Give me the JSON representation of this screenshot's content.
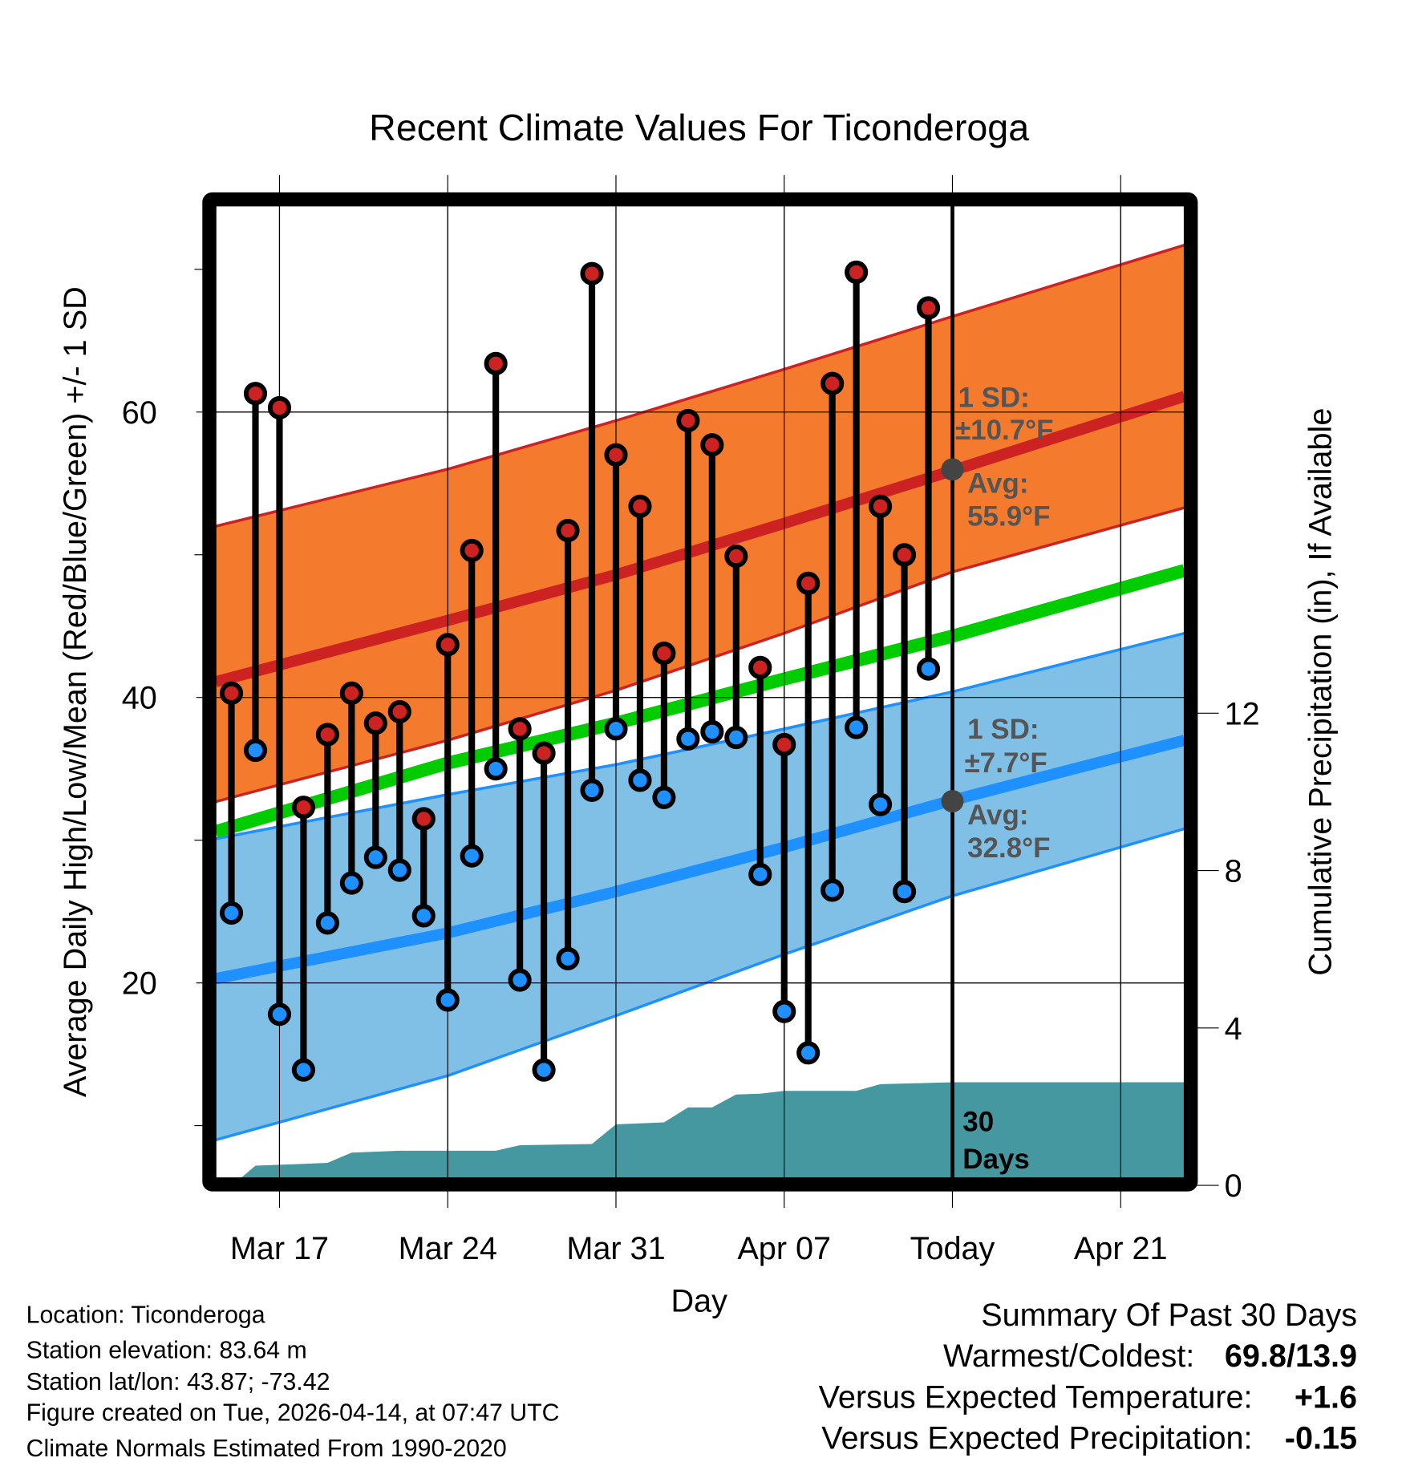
{
  "chart_data": {
    "type": "line",
    "title": "Recent Climate Values For Ticonderoga",
    "xlabel": "Day",
    "ylabel": "Average Daily High/Low/Mean (Red/Blue/Green) +/- 1 SD",
    "ylabel_right": "Cumulative Precipitation (in), If Available",
    "ylim": [
      6.3,
      74.4
    ],
    "yticks": [
      "20",
      "40",
      "60"
    ],
    "ylim_right": [
      0,
      24.7
    ],
    "yticks_right": [
      "0",
      "4",
      "8",
      "12"
    ],
    "x_day_index_note": "day 0 = Mar 15",
    "xlim": [
      -0.65,
      39.65
    ],
    "xticks": [
      {
        "day": 2,
        "label": "Mar 17"
      },
      {
        "day": 9,
        "label": "Mar 24"
      },
      {
        "day": 16,
        "label": "Mar 31"
      },
      {
        "day": 23,
        "label": "Apr 07"
      },
      {
        "day": 30,
        "label": "Today"
      },
      {
        "day": 37,
        "label": "Apr 21"
      }
    ],
    "grid": true,
    "observed": {
      "dates": [
        "Mar 15",
        "Mar 16",
        "Mar 17",
        "Mar 18",
        "Mar 19",
        "Mar 20",
        "Mar 21",
        "Mar 22",
        "Mar 23",
        "Mar 24",
        "Mar 25",
        "Mar 26",
        "Mar 27",
        "Mar 28",
        "Mar 29",
        "Mar 30",
        "Mar 31",
        "Apr 01",
        "Apr 02",
        "Apr 03",
        "Apr 04",
        "Apr 05",
        "Apr 06",
        "Apr 07",
        "Apr 08",
        "Apr 09",
        "Apr 10",
        "Apr 11",
        "Apr 12",
        "Apr 13"
      ],
      "high": [
        40.3,
        61.3,
        60.3,
        32.3,
        37.4,
        40.3,
        38.2,
        39.0,
        31.5,
        43.7,
        50.3,
        63.4,
        37.8,
        36.1,
        51.7,
        69.7,
        57.0,
        53.4,
        43.1,
        59.4,
        57.7,
        49.9,
        42.1,
        36.7,
        48.0,
        62.0,
        69.8,
        53.4,
        50.0,
        67.3
      ],
      "low": [
        24.9,
        36.3,
        17.8,
        13.9,
        24.2,
        27.0,
        28.8,
        27.9,
        24.7,
        18.8,
        28.9,
        35.0,
        20.2,
        13.9,
        21.7,
        33.5,
        37.8,
        34.2,
        33.0,
        37.1,
        37.6,
        37.2,
        27.6,
        18.0,
        15.1,
        26.5,
        37.9,
        32.5,
        26.4,
        42.0
      ]
    },
    "normals": {
      "days": [
        -0.65,
        9,
        16,
        23,
        30,
        39.65
      ],
      "high_mean": [
        41.1,
        45.4,
        48.6,
        52.2,
        55.9,
        61.1
      ],
      "high_upper": [
        52.0,
        56.0,
        59.4,
        63.0,
        66.7,
        71.7
      ],
      "high_lower": [
        32.7,
        37.0,
        40.5,
        44.5,
        48.8,
        53.3
      ],
      "low_mean": [
        20.3,
        23.5,
        26.4,
        29.5,
        32.8,
        37.0
      ],
      "low_upper": [
        30.1,
        33.2,
        35.3,
        37.8,
        40.4,
        44.5
      ],
      "low_lower": [
        9.0,
        13.5,
        17.7,
        22.0,
        26.1,
        30.8
      ],
      "mean": [
        30.6,
        35.4,
        38.2,
        41.3,
        44.3,
        48.9
      ]
    },
    "precip_cumulative": {
      "days": [
        0.4,
        1,
        4,
        5,
        7,
        11,
        12,
        15,
        16,
        18,
        19,
        20,
        21,
        22,
        23,
        26,
        27,
        30,
        39.65
      ],
      "values": [
        0.19,
        0.5,
        0.57,
        0.83,
        0.88,
        0.88,
        1.02,
        1.05,
        1.55,
        1.6,
        1.98,
        1.98,
        2.31,
        2.33,
        2.4,
        2.4,
        2.57,
        2.62,
        2.62
      ]
    },
    "annotations": {
      "high_sd_label": "1 SD:",
      "high_sd_value": "±10.7°F",
      "high_avg_label": "Avg:",
      "high_avg_value": "55.9°F",
      "low_sd_label": "1 SD:",
      "low_sd_value": "±7.7°F",
      "low_avg_label": "Avg:",
      "low_avg_value": "32.8°F",
      "days_num": "30",
      "days_word": "Days",
      "today_high_avg": 55.9,
      "today_low_avg": 32.8
    },
    "colors": {
      "high_band": "#f47a2e",
      "high_line": "#cc2222",
      "low_band": "#80c0e6",
      "low_line": "#1e90ff",
      "mean_line": "#00cc00",
      "precip": "#4598a0",
      "high_marker": "#cc2222",
      "low_marker": "#1e90ff"
    }
  },
  "info": {
    "location": "Location: Ticonderoga",
    "elevation": "Station elevation: 83.64 m",
    "latlon": "Station lat/lon: 43.87; -73.42",
    "created": "Figure created on Tue, 2026-04-14, at 07:47 UTC",
    "normals": "Climate Normals Estimated From 1990-2020"
  },
  "summary": {
    "title": "Summary Of Past 30 Days",
    "warm_cold_label": "Warmest/Coldest:",
    "warm_cold_value": "69.8/13.9",
    "temp_label": "Versus Expected Temperature:",
    "temp_value": "+1.6",
    "precip_label": "Versus Expected Precipitation:",
    "precip_value": "-0.15",
    "temp_color": "#cc2222",
    "precip_color": "#a0522d"
  }
}
